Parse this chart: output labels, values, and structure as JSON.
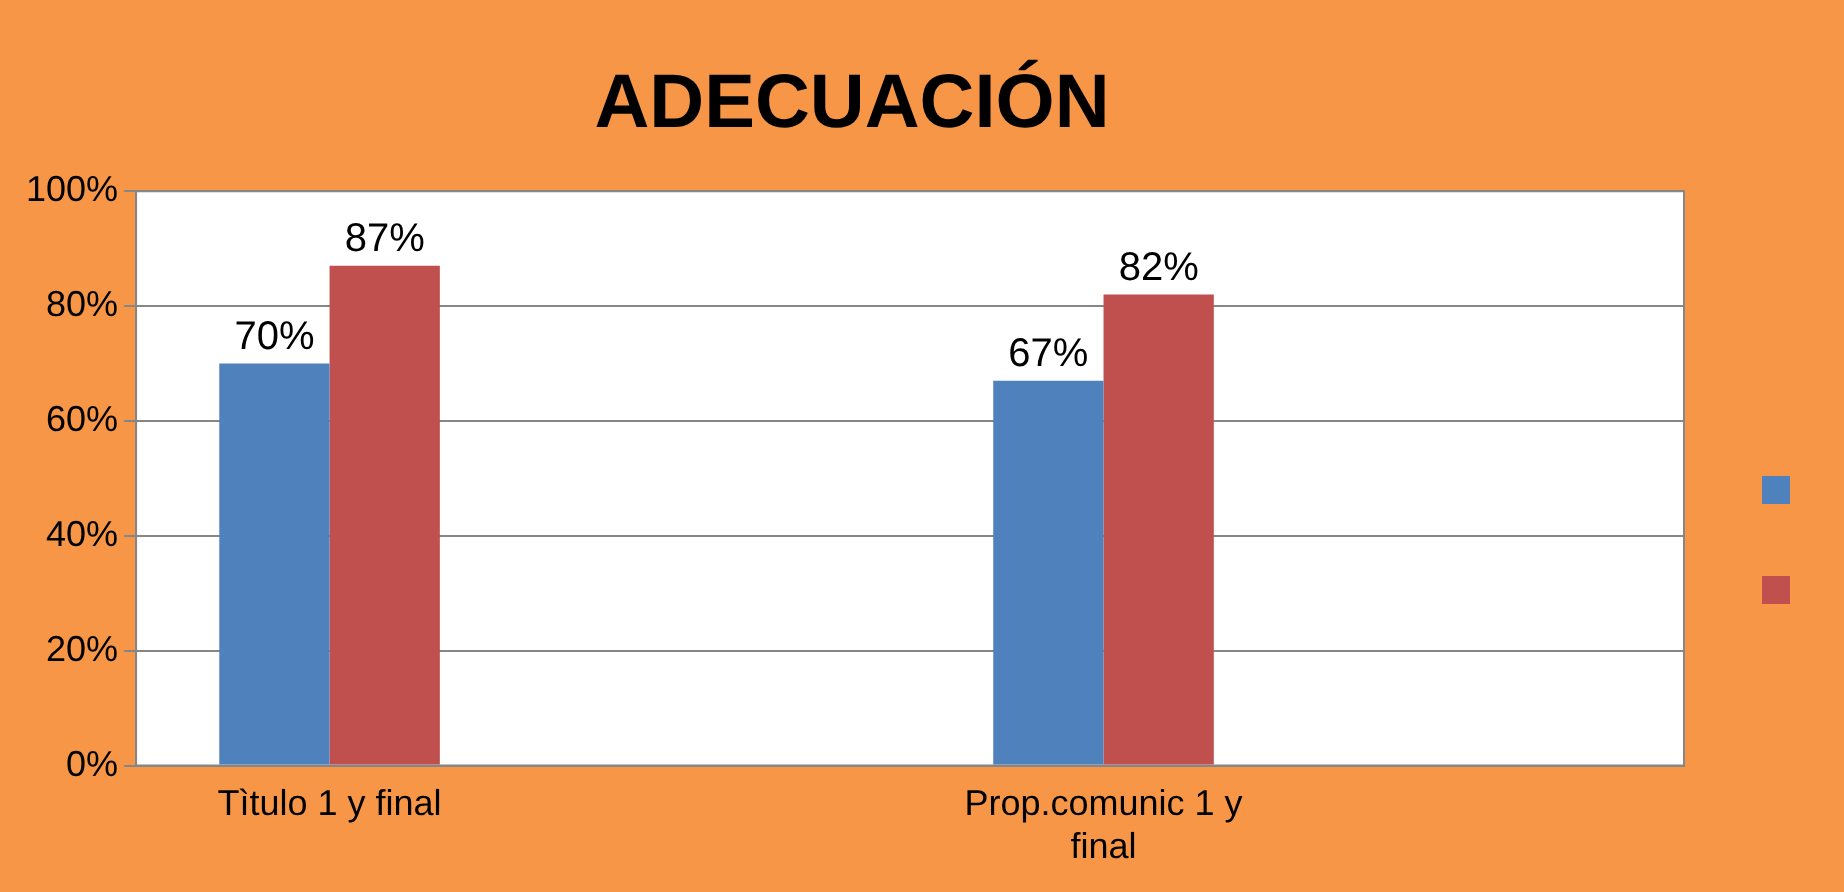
{
  "chart_data": {
    "type": "bar",
    "title": "ADECUACIÓN",
    "categories": [
      "Tìtulo 1 y final",
      null,
      "Prop.comunic 1 y final",
      null
    ],
    "series": [
      {
        "color": "#4f81bd",
        "values": [
          70,
          null,
          67,
          null
        ],
        "value_labels": [
          "70%",
          null,
          "67%",
          null
        ]
      },
      {
        "color": "#c0504d",
        "values": [
          87,
          null,
          82,
          null
        ],
        "value_labels": [
          "87%",
          null,
          "82%",
          null
        ]
      }
    ],
    "ylim": [
      0,
      100
    ],
    "yticks": [
      {
        "value": 0,
        "label": "0%"
      },
      {
        "value": 20,
        "label": "20%"
      },
      {
        "value": 40,
        "label": "40%"
      },
      {
        "value": 60,
        "label": "60%"
      },
      {
        "value": 80,
        "label": "80%"
      },
      {
        "value": 100,
        "label": "100%"
      }
    ],
    "grid": "y"
  }
}
